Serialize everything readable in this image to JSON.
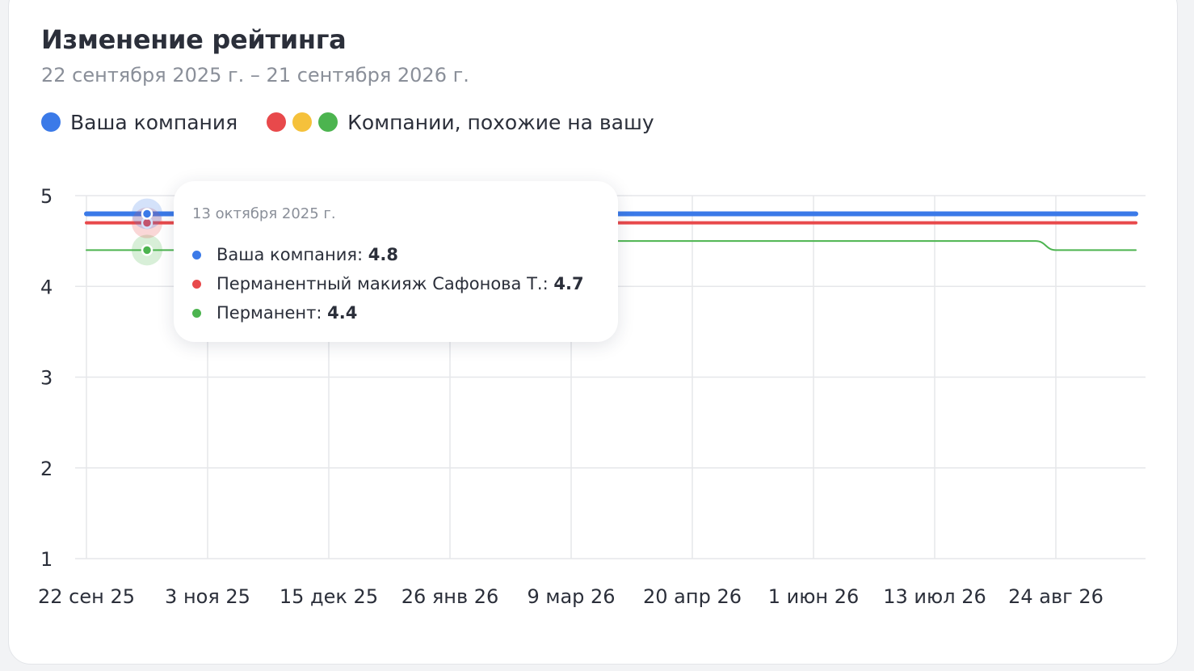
{
  "title": "Изменение рейтинга",
  "subtitle": "22 сентября 2025 г. – 21 сентября 2026 г.",
  "legend": {
    "your_company": {
      "label": "Ваша компания",
      "color": "#3b7ae8"
    },
    "similar": {
      "label": "Компании, похожие на вашу",
      "colors": [
        "#e8494b",
        "#f5c13b",
        "#4cb44f"
      ]
    }
  },
  "tooltip": {
    "date": "13 октября 2025 г.",
    "rows": [
      {
        "label": "Ваша компания:",
        "value": "4.8",
        "color": "#3b7ae8"
      },
      {
        "label": "Перманентный макияж Сафонова Т.:",
        "value": "4.7",
        "color": "#e8494b"
      },
      {
        "label": "Перманент:",
        "value": "4.4",
        "color": "#4cb44f"
      }
    ]
  },
  "chart_data": {
    "type": "line",
    "title": "Изменение рейтинга",
    "subtitle": "22 сентября 2025 г. – 21 сентября 2026 г.",
    "x_range": [
      "2025-09-22",
      "2026-09-21"
    ],
    "x_ticks": [
      {
        "date": "2025-09-22",
        "label": "22 сен 25"
      },
      {
        "date": "2025-11-03",
        "label": "3 ноя 25"
      },
      {
        "date": "2025-12-15",
        "label": "15 дек 25"
      },
      {
        "date": "2026-01-26",
        "label": "26 янв 26"
      },
      {
        "date": "2026-03-09",
        "label": "9 мар 26"
      },
      {
        "date": "2026-04-20",
        "label": "20 апр 26"
      },
      {
        "date": "2026-06-01",
        "label": "1 июн 26"
      },
      {
        "date": "2026-07-13",
        "label": "13 июл 26"
      },
      {
        "date": "2026-08-24",
        "label": "24 авг 26"
      }
    ],
    "y_ticks": [
      1,
      2,
      3,
      4,
      5
    ],
    "ylim": [
      1,
      5
    ],
    "grid": true,
    "legend_position": "top-left",
    "hover_date": "2025-10-13",
    "series": [
      {
        "name": "Ваша компания",
        "color": "#3b7ae8",
        "points": [
          [
            "2025-09-22",
            4.8
          ],
          [
            "2026-09-21",
            4.8
          ]
        ]
      },
      {
        "name": "Перманентный макияж Сафонова Т.",
        "color": "#e8494b",
        "points": [
          [
            "2025-09-22",
            4.7
          ],
          [
            "2026-09-21",
            4.7
          ]
        ]
      },
      {
        "name": "Перманент",
        "color": "#4cb44f",
        "points": [
          [
            "2025-09-22",
            4.4
          ],
          [
            "2025-10-13",
            4.4
          ],
          [
            "2026-03-09",
            4.4
          ],
          [
            "2026-03-16",
            4.5
          ],
          [
            "2026-08-17",
            4.5
          ],
          [
            "2026-08-24",
            4.4
          ],
          [
            "2026-09-21",
            4.4
          ]
        ]
      }
    ]
  }
}
